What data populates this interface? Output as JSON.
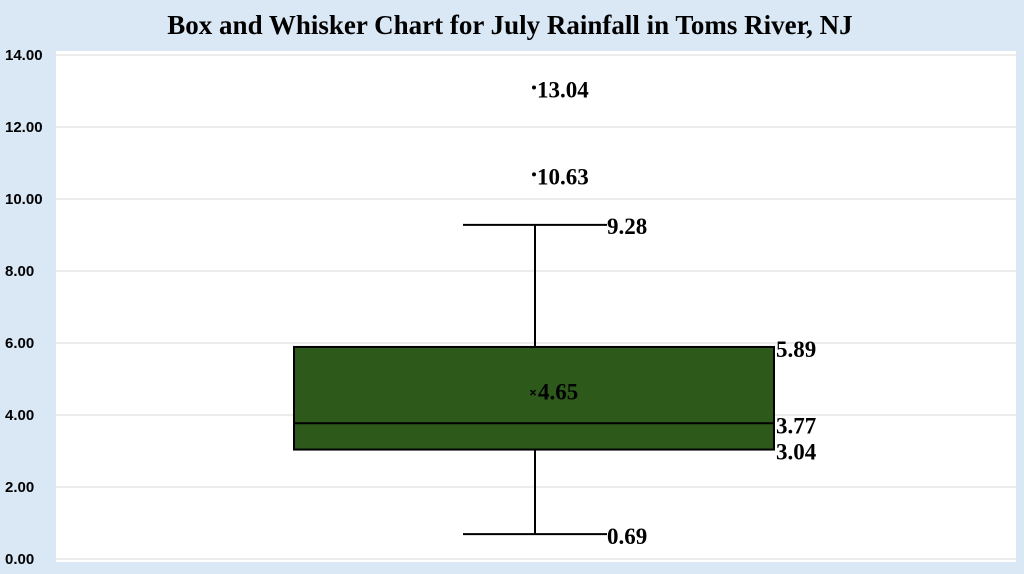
{
  "chart_data": {
    "type": "box",
    "title": "Box and Whisker Chart for July Rainfall in Toms River, NJ",
    "xlabel": "",
    "ylabel": "",
    "ylim": [
      0,
      14
    ],
    "y_ticks": [
      0,
      2,
      4,
      6,
      8,
      10,
      12,
      14
    ],
    "y_tick_labels": [
      "0.00",
      "2.00",
      "4.00",
      "6.00",
      "8.00",
      "10.00",
      "12.00",
      "14.00"
    ],
    "grid": true,
    "legend": "none",
    "box": {
      "min": 0.69,
      "q1": 3.04,
      "median": 3.77,
      "q3": 5.89,
      "max": 9.28,
      "mean": 4.65,
      "outliers": [
        10.63,
        13.04
      ]
    },
    "labels": {
      "min": "0.69",
      "q1": "3.04",
      "median": "3.77",
      "q3": "5.89",
      "max": "9.28",
      "mean": "4.65",
      "outliers": [
        "10.63",
        "13.04"
      ]
    },
    "colors": {
      "box_fill": "#2d5a1b",
      "box_stroke": "#000000",
      "plot_background": "#ffffff",
      "page_background": "#dae7f5",
      "gridline": "#d9d9d9"
    }
  }
}
